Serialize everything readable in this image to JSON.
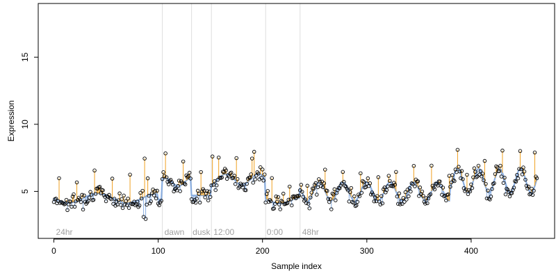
{
  "chart_data": {
    "type": "scatter",
    "title": "",
    "xlabel": "Sample index",
    "ylabel": "Expression",
    "xlim": [
      -15,
      480
    ],
    "ylim": [
      1.5,
      19
    ],
    "x_ticks": [
      0,
      100,
      200,
      300,
      400
    ],
    "y_ticks": [
      5,
      10,
      15
    ],
    "grid": false,
    "legend": "none",
    "region_boundaries": [
      104,
      132,
      151,
      203,
      236
    ],
    "region_labels": [
      {
        "x": 2,
        "label": "24hr"
      },
      {
        "x": 106,
        "label": "dawn"
      },
      {
        "x": 133,
        "label": "dusk"
      },
      {
        "x": 153,
        "label": "12:00"
      },
      {
        "x": 204,
        "label": "0:00"
      },
      {
        "x": 238,
        "label": "48hr"
      }
    ],
    "colors": {
      "fit_line": "#8aaee0",
      "residual_above": "#f0a020",
      "residual_below": "#8aaee0",
      "points": "#000000",
      "region_line": "#dddddd",
      "region_label": "#a0a0a0"
    },
    "series": [
      {
        "kind": "observed",
        "x": [],
        "y": []
      },
      {
        "kind": "fitted",
        "x": [],
        "y": []
      }
    ]
  }
}
